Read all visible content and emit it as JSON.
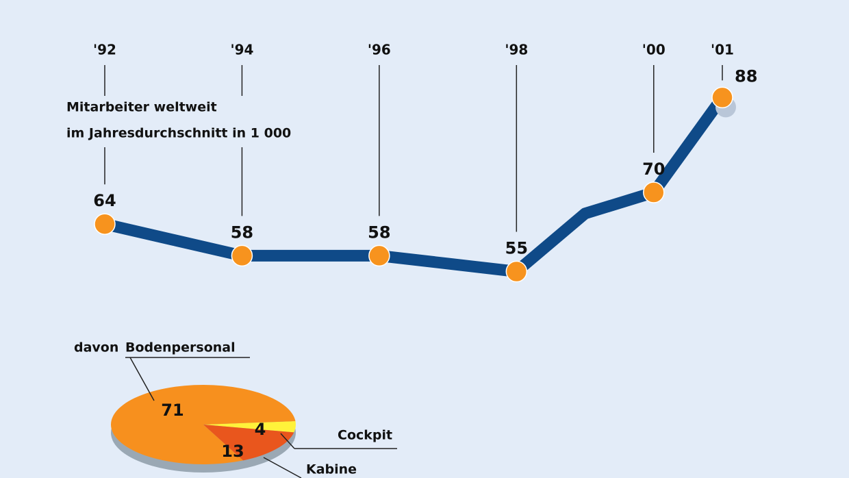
{
  "chart_data": [
    {
      "type": "line",
      "title": [
        "Mitarbeiter weltweit",
        "im Jahresdurchschnitt in 1 000"
      ],
      "x": [
        1992,
        1993,
        1994,
        1995,
        1996,
        1997,
        1998,
        1999,
        2000,
        2001
      ],
      "xlim": [
        1992,
        2001
      ],
      "xticks": [
        {
          "value": 1992,
          "label": "'92"
        },
        {
          "value": 1994,
          "label": "'94"
        },
        {
          "value": 1996,
          "label": "'96"
        },
        {
          "value": 1998,
          "label": "'98"
        },
        {
          "value": 2000,
          "label": "'00"
        },
        {
          "value": 2001,
          "label": "'01"
        }
      ],
      "ylim": [
        40,
        100
      ],
      "series": [
        {
          "name": "Mitarbeiter",
          "color": "#0f4a88",
          "marker_color": "#f7931e",
          "values": [
            64,
            61,
            58,
            58,
            58,
            56.5,
            55,
            66,
            70,
            88
          ],
          "value_labels": [
            "64",
            null,
            "58",
            null,
            "58",
            null,
            "55",
            null,
            "70",
            "88"
          ]
        }
      ]
    },
    {
      "type": "pie",
      "title": "davon",
      "categories": [
        "Bodenpersonal",
        "Cockpit",
        "Kabine"
      ],
      "values": [
        71,
        4,
        13
      ],
      "colors": [
        "#f7901e",
        "#fff23a",
        "#e9561d"
      ]
    }
  ]
}
